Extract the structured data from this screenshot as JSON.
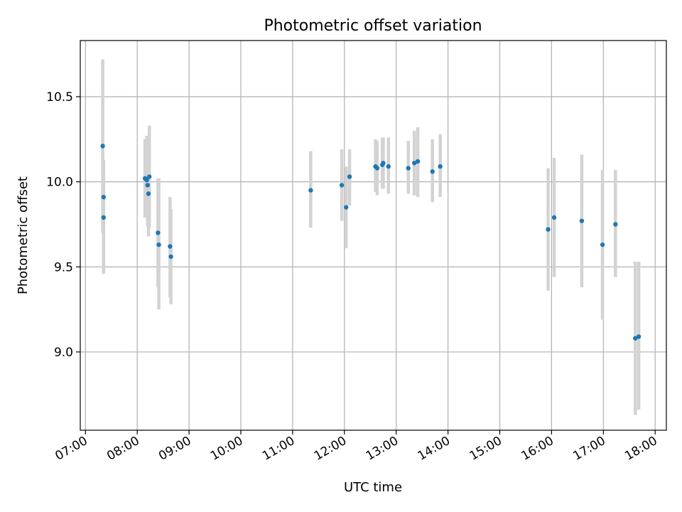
{
  "chart_data": {
    "type": "scatter",
    "title": "Photometric offset variation",
    "xlabel": "UTC time",
    "ylabel": "Photometric offset",
    "xlim": [
      "06:54",
      "18:13"
    ],
    "ylim": [
      8.54,
      10.83
    ],
    "x_ticks": [
      "07:00",
      "08:00",
      "09:00",
      "10:00",
      "11:00",
      "12:00",
      "13:00",
      "14:00",
      "15:00",
      "16:00",
      "17:00",
      "18:00"
    ],
    "y_ticks": [
      9.0,
      9.5,
      10.0,
      10.5
    ],
    "grid": true,
    "colors": {
      "marker": "#1f77b4",
      "errorbar": "#d3d3d3",
      "grid": "#b0b0b0"
    },
    "points": [
      {
        "time": "07:20",
        "value": 10.21,
        "low": 9.7,
        "high": 10.72
      },
      {
        "time": "07:21",
        "value": 9.91,
        "low": 9.46,
        "high": 10.13
      },
      {
        "time": "07:21",
        "value": 9.79,
        "low": 9.46,
        "high": 10.12
      },
      {
        "time": "08:09",
        "value": 10.02,
        "low": 9.79,
        "high": 10.25
      },
      {
        "time": "08:11",
        "value": 10.01,
        "low": 9.8,
        "high": 10.27
      },
      {
        "time": "08:12",
        "value": 9.98,
        "low": 9.74,
        "high": 10.22
      },
      {
        "time": "08:13",
        "value": 9.93,
        "low": 9.68,
        "high": 10.18
      },
      {
        "time": "08:14",
        "value": 10.03,
        "low": 9.73,
        "high": 10.33
      },
      {
        "time": "08:24",
        "value": 9.7,
        "low": 9.38,
        "high": 10.02
      },
      {
        "time": "08:25",
        "value": 9.63,
        "low": 9.25,
        "high": 10.02
      },
      {
        "time": "08:38",
        "value": 9.62,
        "low": 9.32,
        "high": 9.91
      },
      {
        "time": "08:39",
        "value": 9.56,
        "low": 9.28,
        "high": 9.84
      },
      {
        "time": "11:21",
        "value": 9.95,
        "low": 9.73,
        "high": 10.18
      },
      {
        "time": "11:57",
        "value": 9.98,
        "low": 9.77,
        "high": 10.19
      },
      {
        "time": "12:02",
        "value": 9.85,
        "low": 9.61,
        "high": 10.09
      },
      {
        "time": "12:06",
        "value": 10.03,
        "low": 9.86,
        "high": 10.19
      },
      {
        "time": "12:36",
        "value": 10.09,
        "low": 9.94,
        "high": 10.25
      },
      {
        "time": "12:38",
        "value": 10.08,
        "low": 9.92,
        "high": 10.24
      },
      {
        "time": "12:44",
        "value": 10.1,
        "low": 9.96,
        "high": 10.26
      },
      {
        "time": "12:45",
        "value": 10.11,
        "low": 9.96,
        "high": 10.26
      },
      {
        "time": "12:51",
        "value": 10.09,
        "low": 9.93,
        "high": 10.26
      },
      {
        "time": "13:14",
        "value": 10.08,
        "low": 9.93,
        "high": 10.24
      },
      {
        "time": "13:21",
        "value": 10.11,
        "low": 9.92,
        "high": 10.3
      },
      {
        "time": "13:25",
        "value": 10.12,
        "low": 9.91,
        "high": 10.32
      },
      {
        "time": "13:42",
        "value": 10.06,
        "low": 9.88,
        "high": 10.25
      },
      {
        "time": "13:51",
        "value": 10.09,
        "low": 9.91,
        "high": 10.28
      },
      {
        "time": "15:56",
        "value": 9.72,
        "low": 9.36,
        "high": 10.08
      },
      {
        "time": "16:03",
        "value": 9.79,
        "low": 9.44,
        "high": 10.14
      },
      {
        "time": "16:35",
        "value": 9.77,
        "low": 9.38,
        "high": 10.16
      },
      {
        "time": "16:59",
        "value": 9.63,
        "low": 9.19,
        "high": 10.07
      },
      {
        "time": "17:14",
        "value": 9.75,
        "low": 9.44,
        "high": 10.07
      },
      {
        "time": "17:37",
        "value": 9.08,
        "low": 8.63,
        "high": 9.53
      },
      {
        "time": "17:41",
        "value": 9.09,
        "low": 8.66,
        "high": 9.53
      }
    ]
  }
}
